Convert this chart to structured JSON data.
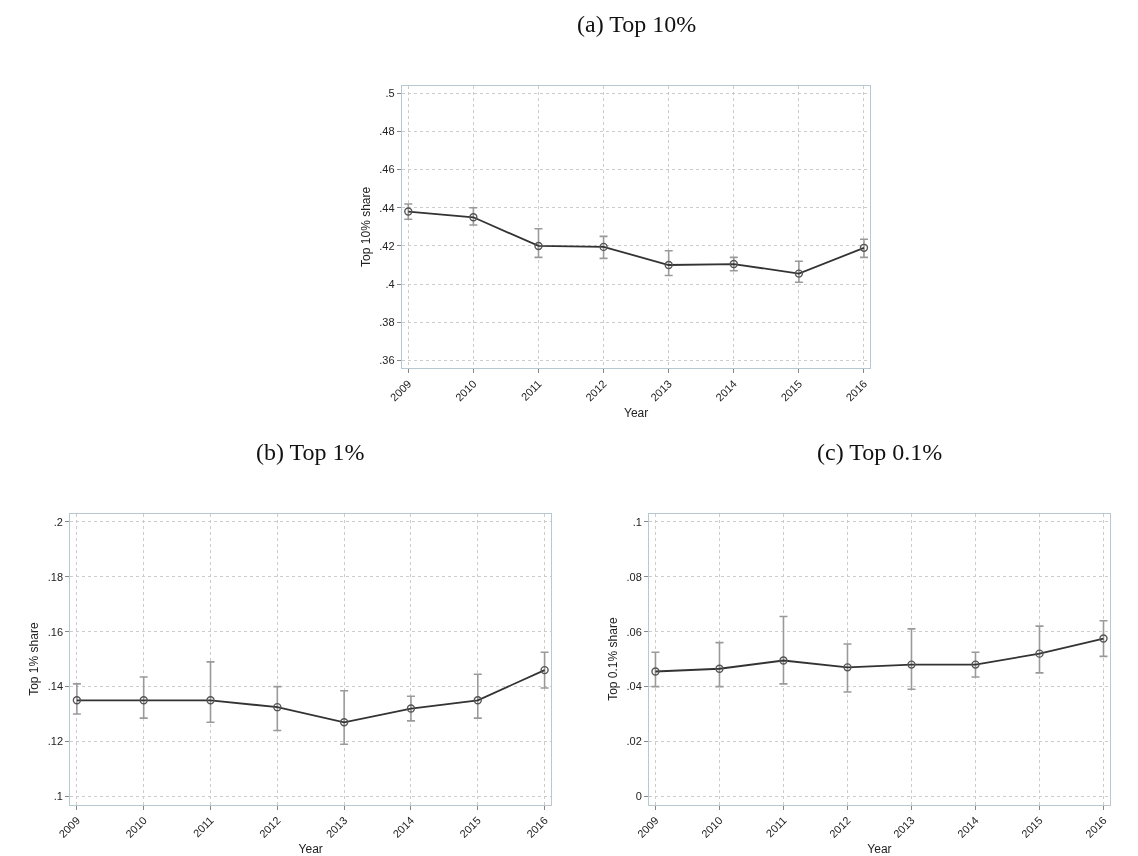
{
  "chart_data": [
    {
      "type": "line",
      "title": "(a) Top 10%",
      "xlabel": "Year",
      "ylabel": "Top 10% share",
      "x": [
        2009,
        2010,
        2011,
        2012,
        2013,
        2014,
        2015,
        2016
      ],
      "series": [
        {
          "color": "#333333",
          "values": [
            0.438,
            0.435,
            0.42,
            0.4195,
            0.41,
            0.4105,
            0.4055,
            0.419
          ],
          "errors": [
            [
              0.434,
              0.442
            ],
            [
              0.431,
              0.44
            ],
            [
              0.414,
              0.429
            ],
            [
              0.4135,
              0.425
            ],
            [
              0.4045,
              0.4175
            ],
            [
              0.407,
              0.414
            ],
            [
              0.401,
              0.412
            ],
            [
              0.414,
              0.4235
            ]
          ]
        }
      ],
      "xlim": [
        2008.9,
        2016.1
      ],
      "xticks": [
        2009,
        2010,
        2011,
        2012,
        2013,
        2014,
        2015,
        2016
      ],
      "ylim": [
        0.356,
        0.504
      ],
      "yticks": [
        {
          "value": 0.36,
          "label": ".36"
        },
        {
          "value": 0.38,
          "label": ".38"
        },
        {
          "value": 0.4,
          "label": ".4"
        },
        {
          "value": 0.42,
          "label": ".42"
        },
        {
          "value": 0.44,
          "label": ".44"
        },
        {
          "value": 0.46,
          "label": ".46"
        },
        {
          "value": 0.48,
          "label": ".48"
        },
        {
          "value": 0.5,
          "label": ".5"
        }
      ],
      "grid": true,
      "marker": "circle",
      "line_style": "solid"
    },
    {
      "type": "line",
      "title": "(b) Top 1%",
      "xlabel": "Year",
      "ylabel": "Top 1% share",
      "x": [
        2009,
        2010,
        2011,
        2012,
        2013,
        2014,
        2015,
        2016
      ],
      "series": [
        {
          "color": "#333333",
          "values": [
            0.135,
            0.135,
            0.135,
            0.1325,
            0.127,
            0.132,
            0.135,
            0.146
          ],
          "errors": [
            [
              0.13,
              0.141
            ],
            [
              0.1285,
              0.1435
            ],
            [
              0.127,
              0.149
            ],
            [
              0.124,
              0.14
            ],
            [
              0.119,
              0.1385
            ],
            [
              0.1275,
              0.1365
            ],
            [
              0.1285,
              0.1445
            ],
            [
              0.1395,
              0.1525
            ]
          ]
        }
      ],
      "xlim": [
        2008.9,
        2016.1
      ],
      "xticks": [
        2009,
        2010,
        2011,
        2012,
        2013,
        2014,
        2015,
        2016
      ],
      "ylim": [
        0.097,
        0.203
      ],
      "yticks": [
        {
          "value": 0.1,
          "label": ".1"
        },
        {
          "value": 0.12,
          "label": ".12"
        },
        {
          "value": 0.14,
          "label": ".14"
        },
        {
          "value": 0.16,
          "label": ".16"
        },
        {
          "value": 0.18,
          "label": ".18"
        },
        {
          "value": 0.2,
          "label": ".2"
        }
      ],
      "grid": true,
      "marker": "circle",
      "line_style": "solid"
    },
    {
      "type": "line",
      "title": "(c) Top 0.1%",
      "xlabel": "Year",
      "ylabel": "Top 0.1% share",
      "x": [
        2009,
        2010,
        2011,
        2012,
        2013,
        2014,
        2015,
        2016
      ],
      "series": [
        {
          "color": "#333333",
          "values": [
            0.0455,
            0.0465,
            0.0495,
            0.047,
            0.048,
            0.048,
            0.052,
            0.0575
          ],
          "errors": [
            [
              0.04,
              0.0525
            ],
            [
              0.04,
              0.056
            ],
            [
              0.041,
              0.0655
            ],
            [
              0.038,
              0.0555
            ],
            [
              0.039,
              0.061
            ],
            [
              0.0435,
              0.0525
            ],
            [
              0.045,
              0.062
            ],
            [
              0.051,
              0.064
            ]
          ]
        }
      ],
      "xlim": [
        2008.9,
        2016.1
      ],
      "xticks": [
        2009,
        2010,
        2011,
        2012,
        2013,
        2014,
        2015,
        2016
      ],
      "ylim": [
        -0.003,
        0.103
      ],
      "yticks": [
        0,
        {
          "value": 0.02,
          "label": ".02"
        },
        {
          "value": 0.04,
          "label": ".04"
        },
        {
          "value": 0.06,
          "label": ".06"
        },
        {
          "value": 0.08,
          "label": ".08"
        },
        {
          "value": 0.1,
          "label": ".1"
        }
      ],
      "grid": true,
      "marker": "circle",
      "line_style": "solid"
    }
  ]
}
